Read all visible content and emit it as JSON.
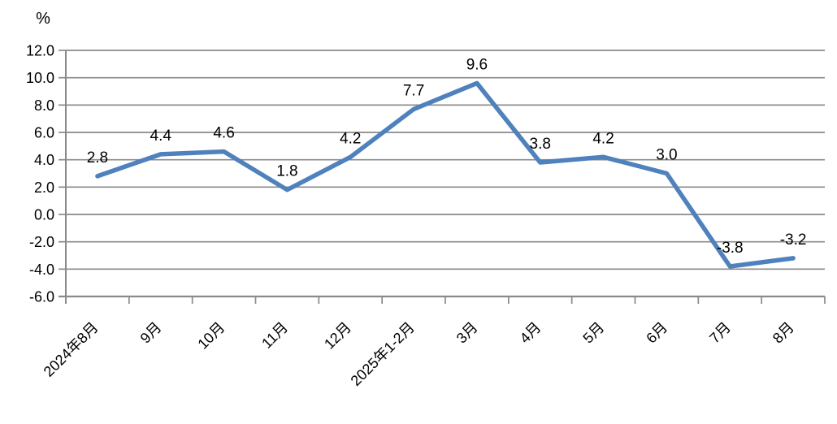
{
  "chart_data": {
    "type": "line",
    "title": "",
    "xlabel": "",
    "ylabel": "%",
    "categories": [
      "2024年8月",
      "9月",
      "10月",
      "11月",
      "12月",
      "2025年1-2月",
      "3月",
      "4月",
      "5月",
      "6月",
      "7月",
      "8月"
    ],
    "values": [
      2.8,
      4.4,
      4.6,
      1.8,
      4.2,
      7.7,
      9.6,
      3.8,
      4.2,
      3.0,
      -3.8,
      -3.2
    ],
    "point_labels": [
      "2.8",
      "4.4",
      "4.6",
      "1.8",
      "4.2",
      "7.7",
      "9.6",
      "3.8",
      "4.2",
      "3.0",
      "-3.8",
      "-3.2"
    ],
    "ylim": [
      -6.0,
      12.0
    ],
    "ytick_step": 2.0,
    "ytick_labels": [
      "12.0",
      "10.0",
      "8.0",
      "6.0",
      "4.0",
      "2.0",
      "0.0",
      "-2.0",
      "-4.0",
      "-6.0"
    ],
    "grid": true,
    "legend": "none",
    "line_color": "#4F81BD",
    "line_width": 5.5,
    "gridline_color": "#8A8A8A",
    "axis_color": "#8A8A8A",
    "label_color": "#000000",
    "background_color": "#FFFFFF"
  }
}
